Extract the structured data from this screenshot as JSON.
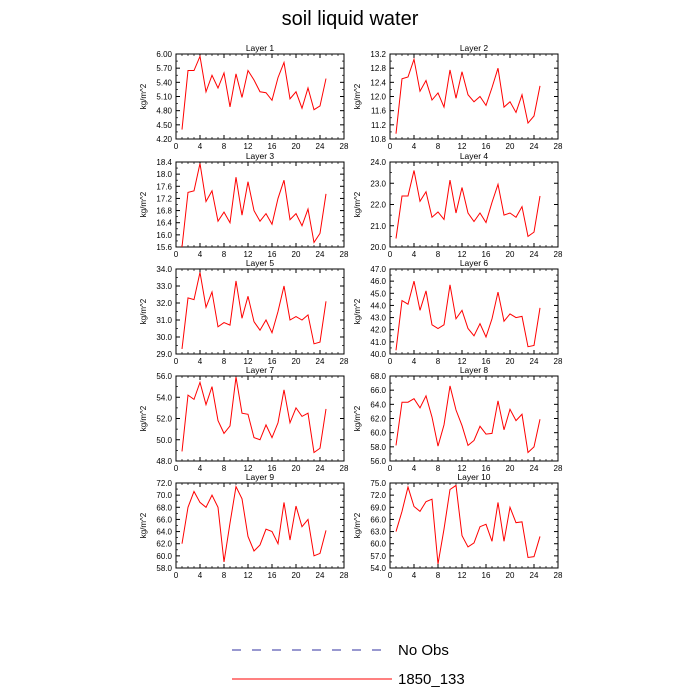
{
  "title": "soil liquid water",
  "legend": {
    "items": [
      {
        "label": "No Obs",
        "color": "#3030a0",
        "dash": true
      },
      {
        "label": "1850_133",
        "color": "#ff0000",
        "dash": false
      }
    ]
  },
  "chart_data": [
    {
      "type": "line",
      "title": "Layer 1",
      "ylabel": "kg/m^2",
      "xlim": [
        0,
        28
      ],
      "xticks": [
        0,
        4,
        8,
        12,
        16,
        20,
        24,
        28
      ],
      "ylim": [
        4.2,
        6.0
      ],
      "yticks": [
        "4.20",
        "4.50",
        "4.80",
        "5.10",
        "5.40",
        "5.70",
        "6.00"
      ],
      "series": [
        {
          "name": "1850_133",
          "color": "#ff0000",
          "x": [
            1,
            2,
            3,
            4,
            5,
            6,
            7,
            8,
            9,
            10,
            11,
            12,
            13,
            14,
            15,
            16,
            17,
            18,
            19,
            20,
            21,
            22,
            23,
            24,
            25
          ],
          "y": [
            4.4,
            5.65,
            5.65,
            5.95,
            5.2,
            5.55,
            5.28,
            5.6,
            4.88,
            5.58,
            5.08,
            5.65,
            5.45,
            5.2,
            5.18,
            5.02,
            5.5,
            5.82,
            5.05,
            5.2,
            4.85,
            5.28,
            4.82,
            4.9,
            5.48
          ]
        }
      ]
    },
    {
      "type": "line",
      "title": "Layer 2",
      "ylabel": "kg/m^2",
      "xlim": [
        0,
        28
      ],
      "xticks": [
        0,
        4,
        8,
        12,
        16,
        20,
        24,
        28
      ],
      "ylim": [
        10.8,
        13.2
      ],
      "yticks": [
        "10.8",
        "11.2",
        "11.6",
        "12.0",
        "12.4",
        "12.8",
        "13.2"
      ],
      "series": [
        {
          "name": "1850_133",
          "color": "#ff0000",
          "x": [
            1,
            2,
            3,
            4,
            5,
            6,
            7,
            8,
            9,
            10,
            11,
            12,
            13,
            14,
            15,
            16,
            17,
            18,
            19,
            20,
            21,
            22,
            23,
            24,
            25
          ],
          "y": [
            10.95,
            12.5,
            12.55,
            13.05,
            12.15,
            12.45,
            11.9,
            12.1,
            11.7,
            12.75,
            11.95,
            12.7,
            12.05,
            11.85,
            12.0,
            11.75,
            12.25,
            12.8,
            11.7,
            11.85,
            11.55,
            12.05,
            11.25,
            11.45,
            12.3
          ]
        }
      ]
    },
    {
      "type": "line",
      "title": "Layer 3",
      "ylabel": "kg/m^2",
      "xlim": [
        0,
        28
      ],
      "xticks": [
        0,
        4,
        8,
        12,
        16,
        20,
        24,
        28
      ],
      "ylim": [
        15.6,
        18.4
      ],
      "yticks": [
        "15.6",
        "16.0",
        "16.4",
        "16.8",
        "17.2",
        "17.6",
        "18.0",
        "18.4"
      ],
      "series": [
        {
          "name": "1850_133",
          "color": "#ff0000",
          "x": [
            1,
            2,
            3,
            4,
            5,
            6,
            7,
            8,
            9,
            10,
            11,
            12,
            13,
            14,
            15,
            16,
            17,
            18,
            19,
            20,
            21,
            22,
            23,
            24,
            25
          ],
          "y": [
            15.6,
            17.4,
            17.45,
            18.35,
            17.1,
            17.45,
            16.45,
            16.75,
            16.4,
            17.9,
            16.65,
            17.75,
            16.8,
            16.45,
            16.7,
            16.35,
            17.2,
            17.8,
            16.5,
            16.7,
            16.3,
            16.85,
            15.75,
            16.05,
            17.35
          ]
        }
      ]
    },
    {
      "type": "line",
      "title": "Layer 4",
      "ylabel": "kg/m^2",
      "xlim": [
        0,
        28
      ],
      "xticks": [
        0,
        4,
        8,
        12,
        16,
        20,
        24,
        28
      ],
      "ylim": [
        20.0,
        24.0
      ],
      "yticks": [
        "20.0",
        "21.0",
        "22.0",
        "23.0",
        "24.0"
      ],
      "series": [
        {
          "name": "1850_133",
          "color": "#ff0000",
          "x": [
            1,
            2,
            3,
            4,
            5,
            6,
            7,
            8,
            9,
            10,
            11,
            12,
            13,
            14,
            15,
            16,
            17,
            18,
            19,
            20,
            21,
            22,
            23,
            24,
            25
          ],
          "y": [
            20.4,
            22.4,
            22.4,
            23.6,
            22.15,
            22.6,
            21.4,
            21.65,
            21.3,
            23.15,
            21.6,
            22.8,
            21.6,
            21.2,
            21.6,
            21.15,
            22.1,
            22.95,
            21.5,
            21.6,
            21.4,
            21.9,
            20.5,
            20.7,
            22.4
          ]
        }
      ]
    },
    {
      "type": "line",
      "title": "Layer 5",
      "ylabel": "kg/m^2",
      "xlim": [
        0,
        28
      ],
      "xticks": [
        0,
        4,
        8,
        12,
        16,
        20,
        24,
        28
      ],
      "ylim": [
        29.0,
        34.0
      ],
      "yticks": [
        "29.0",
        "30.0",
        "31.0",
        "32.0",
        "33.0",
        "34.0"
      ],
      "series": [
        {
          "name": "1850_133",
          "color": "#ff0000",
          "x": [
            1,
            2,
            3,
            4,
            5,
            6,
            7,
            8,
            9,
            10,
            11,
            12,
            13,
            14,
            15,
            16,
            17,
            18,
            19,
            20,
            21,
            22,
            23,
            24,
            25
          ],
          "y": [
            29.3,
            32.3,
            32.2,
            33.8,
            31.75,
            32.65,
            30.6,
            30.85,
            30.7,
            33.3,
            31.1,
            32.4,
            30.9,
            30.4,
            31.0,
            30.25,
            31.5,
            33.0,
            31.0,
            31.2,
            31.0,
            31.3,
            29.6,
            29.7,
            32.1
          ]
        }
      ]
    },
    {
      "type": "line",
      "title": "Layer 6",
      "ylabel": "kg/m^2",
      "xlim": [
        0,
        28
      ],
      "xticks": [
        0,
        4,
        8,
        12,
        16,
        20,
        24,
        28
      ],
      "ylim": [
        40.0,
        47.0
      ],
      "yticks": [
        "40.0",
        "41.0",
        "42.0",
        "43.0",
        "44.0",
        "45.0",
        "46.0",
        "47.0"
      ],
      "series": [
        {
          "name": "1850_133",
          "color": "#ff0000",
          "x": [
            1,
            2,
            3,
            4,
            5,
            6,
            7,
            8,
            9,
            10,
            11,
            12,
            13,
            14,
            15,
            16,
            17,
            18,
            19,
            20,
            21,
            22,
            23,
            24,
            25
          ],
          "y": [
            40.3,
            44.4,
            44.1,
            46.0,
            43.6,
            45.2,
            42.4,
            42.1,
            42.4,
            45.7,
            42.9,
            43.6,
            42.1,
            41.5,
            42.5,
            41.4,
            42.9,
            45.1,
            42.7,
            43.3,
            43.0,
            43.1,
            40.6,
            40.7,
            43.8
          ]
        }
      ]
    },
    {
      "type": "line",
      "title": "Layer 7",
      "ylabel": "kg/m^2",
      "xlim": [
        0,
        28
      ],
      "xticks": [
        0,
        4,
        8,
        12,
        16,
        20,
        24,
        28
      ],
      "ylim": [
        48.0,
        56.0
      ],
      "yticks": [
        "48.0",
        "50.0",
        "52.0",
        "54.0",
        "56.0"
      ],
      "series": [
        {
          "name": "1850_133",
          "color": "#ff0000",
          "x": [
            1,
            2,
            3,
            4,
            5,
            6,
            7,
            8,
            9,
            10,
            11,
            12,
            13,
            14,
            15,
            16,
            17,
            18,
            19,
            20,
            21,
            22,
            23,
            24,
            25
          ],
          "y": [
            48.9,
            54.2,
            53.8,
            55.4,
            53.3,
            55.0,
            51.8,
            50.6,
            51.3,
            55.9,
            52.5,
            52.4,
            50.2,
            50.0,
            51.4,
            50.2,
            51.6,
            54.7,
            51.6,
            53.0,
            52.2,
            52.5,
            48.8,
            49.2,
            52.9
          ]
        }
      ]
    },
    {
      "type": "line",
      "title": "Layer 8",
      "ylabel": "kg/m^2",
      "xlim": [
        0,
        28
      ],
      "xticks": [
        0,
        4,
        8,
        12,
        16,
        20,
        24,
        28
      ],
      "ylim": [
        56.0,
        68.0
      ],
      "yticks": [
        "56.0",
        "58.0",
        "60.0",
        "62.0",
        "64.0",
        "66.0",
        "68.0"
      ],
      "series": [
        {
          "name": "1850_133",
          "color": "#ff0000",
          "x": [
            1,
            2,
            3,
            4,
            5,
            6,
            7,
            8,
            9,
            10,
            11,
            12,
            13,
            14,
            15,
            16,
            17,
            18,
            19,
            20,
            21,
            22,
            23,
            24,
            25
          ],
          "y": [
            58.2,
            64.3,
            64.3,
            64.8,
            63.5,
            65.2,
            62.2,
            58.1,
            61.1,
            66.6,
            63.2,
            61.0,
            58.2,
            58.9,
            60.9,
            59.8,
            59.9,
            64.5,
            60.4,
            63.3,
            61.7,
            62.6,
            57.2,
            58.0,
            61.9
          ]
        }
      ]
    },
    {
      "type": "line",
      "title": "Layer 9",
      "ylabel": "kg/m^2",
      "xlim": [
        0,
        28
      ],
      "xticks": [
        0,
        4,
        8,
        12,
        16,
        20,
        24,
        28
      ],
      "ylim": [
        58.0,
        72.0
      ],
      "yticks": [
        "58.0",
        "60.0",
        "62.0",
        "64.0",
        "66.0",
        "68.0",
        "70.0",
        "72.0"
      ],
      "series": [
        {
          "name": "1850_133",
          "color": "#ff0000",
          "x": [
            1,
            2,
            3,
            4,
            5,
            6,
            7,
            8,
            9,
            10,
            11,
            12,
            13,
            14,
            15,
            16,
            17,
            18,
            19,
            20,
            21,
            22,
            23,
            24,
            25
          ],
          "y": [
            62.0,
            68.0,
            70.6,
            68.8,
            68.0,
            70.0,
            68.0,
            59.0,
            65.4,
            71.4,
            69.4,
            63.2,
            60.8,
            61.8,
            64.4,
            64.0,
            62.0,
            68.8,
            62.6,
            68.2,
            64.8,
            66.0,
            60.0,
            60.4,
            64.2
          ]
        }
      ]
    },
    {
      "type": "line",
      "title": "Layer 10",
      "ylabel": "kg/m^2",
      "xlim": [
        0,
        28
      ],
      "xticks": [
        0,
        4,
        8,
        12,
        16,
        20,
        24,
        28
      ],
      "ylim": [
        54.0,
        75.0
      ],
      "yticks": [
        "54.0",
        "57.0",
        "60.0",
        "63.0",
        "66.0",
        "69.0",
        "72.0",
        "75.0"
      ],
      "series": [
        {
          "name": "1850_133",
          "color": "#ff0000",
          "x": [
            1,
            2,
            3,
            4,
            5,
            6,
            7,
            8,
            9,
            10,
            11,
            12,
            13,
            14,
            15,
            16,
            17,
            18,
            19,
            20,
            21,
            22,
            23,
            24,
            25
          ],
          "y": [
            63.0,
            68.0,
            74.0,
            69.2,
            68.0,
            70.4,
            71.0,
            55.0,
            63.6,
            73.4,
            74.4,
            62.0,
            59.2,
            60.2,
            64.2,
            64.8,
            60.6,
            70.2,
            60.6,
            69.0,
            65.2,
            65.4,
            56.6,
            56.8,
            61.8
          ]
        }
      ]
    }
  ]
}
